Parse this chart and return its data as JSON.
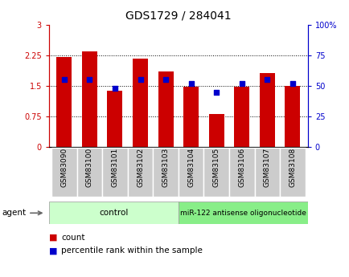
{
  "title": "GDS1729 / 284041",
  "samples": [
    "GSM83090",
    "GSM83100",
    "GSM83101",
    "GSM83102",
    "GSM83103",
    "GSM83104",
    "GSM83105",
    "GSM83106",
    "GSM83107",
    "GSM83108"
  ],
  "bar_heights": [
    2.22,
    2.35,
    1.38,
    2.17,
    1.85,
    1.47,
    0.8,
    1.47,
    1.82,
    1.5
  ],
  "blue_pct": [
    55,
    55,
    48,
    55,
    55,
    52,
    45,
    52,
    55,
    52
  ],
  "bar_color": "#cc0000",
  "dot_color": "#0000cc",
  "group1_label": "control",
  "group1_color": "#ccffcc",
  "group2_label": "miR-122 antisense oligonucleotide",
  "group2_color": "#88ee88",
  "ylim_left": [
    0,
    3
  ],
  "ylim_right": [
    0,
    100
  ],
  "yticks_left": [
    0,
    0.75,
    1.5,
    2.25,
    3
  ],
  "yticks_right": [
    0,
    25,
    50,
    75,
    100
  ],
  "ytick_labels_left": [
    "0",
    "0.75",
    "1.5",
    "2.25",
    "3"
  ],
  "ytick_labels_right": [
    "0",
    "25",
    "50",
    "75",
    "100%"
  ],
  "hlines": [
    0.75,
    1.5,
    2.25
  ],
  "left_axis_color": "#cc0000",
  "right_axis_color": "#0000cc",
  "bar_width": 0.6,
  "xtick_bg": "#cccccc",
  "plot_bg": "#ffffff",
  "legend_count_label": "count",
  "legend_pct_label": "percentile rank within the sample",
  "agent_label": "agent"
}
